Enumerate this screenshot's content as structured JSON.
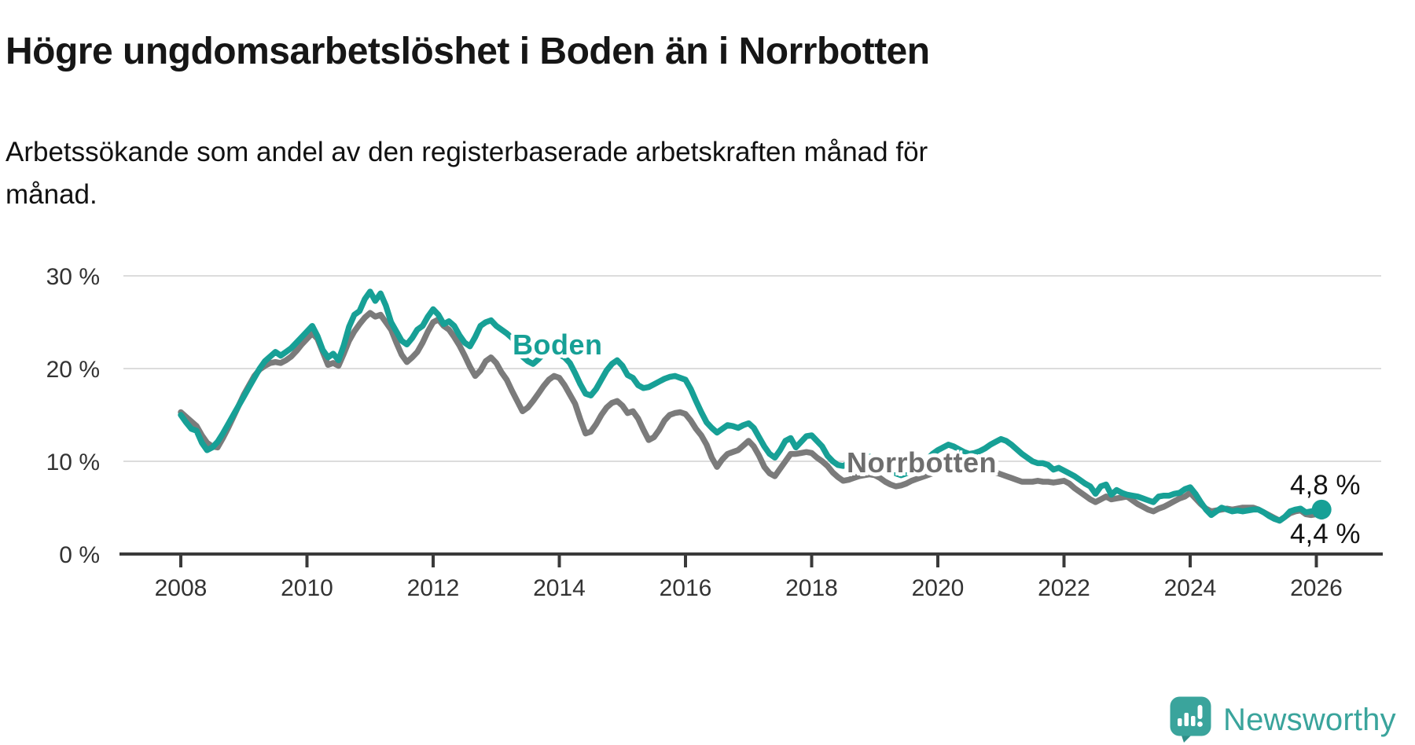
{
  "title": "Högre ungdomsarbetslöshet i Boden än i Norrbotten",
  "subtitle": {
    "line1": "Arbetssökande som andel av den registerbaserade arbetskraften månad för",
    "line2": "månad."
  },
  "annotations": {
    "boden_label": "Boden",
    "norrbotten_label": "Norrbotten",
    "boden_end_value": "4,8 %",
    "norrbotten_end_value": "4,4 %"
  },
  "footer": {
    "brand": "Newsworthy"
  },
  "colors": {
    "boden_line": "#17a096",
    "norrbotten_line": "#7b7b7b",
    "norrbotten_label_text": "#6e6e6e",
    "gridline": "#dcdcdc",
    "axis": "#3a3a3a",
    "tick_text": "#333333",
    "logo_teal": "#3aa49c",
    "logo_tail_teal": "#2f8f88"
  },
  "chart_data": {
    "type": "line",
    "unit": "%",
    "frequency": "monthly",
    "x_start_year": 2008,
    "x_start_month": 1,
    "x_end_year": 2026,
    "x_end_month": 2,
    "x_ticks": [
      2008,
      2010,
      2012,
      2014,
      2016,
      2018,
      2020,
      2022,
      2024,
      2026
    ],
    "x_tick_labels": [
      "2008",
      "2010",
      "2012",
      "2014",
      "2016",
      "2018",
      "2020",
      "2022",
      "2024",
      "2026"
    ],
    "y_ticks": [
      0,
      10,
      20,
      30
    ],
    "y_tick_labels": [
      "0 %",
      "10 %",
      "20 %",
      "30 %"
    ],
    "y_gridlines": [
      10,
      20,
      30
    ],
    "ylim": [
      0,
      30
    ],
    "legend_position": "inline-labels",
    "grid": "horizontal-only",
    "series": [
      {
        "name": "Norrbotten",
        "color": "#7b7b7b",
        "end_value_label": "4,4 %",
        "values": [
          15.3,
          14.8,
          14.3,
          13.8,
          12.8,
          12,
          11.6,
          11.5,
          12.5,
          13.6,
          14.8,
          16,
          17.2,
          18.2,
          19.2,
          19.9,
          20.3,
          20.6,
          20.7,
          20.6,
          20.9,
          21.3,
          21.9,
          22.6,
          23.2,
          23.8,
          23.2,
          21.8,
          20.4,
          20.6,
          20.3,
          21.6,
          23,
          24,
          24.8,
          25.5,
          26,
          25.6,
          25.8,
          25,
          24.2,
          22.8,
          21.5,
          20.7,
          21.2,
          21.8,
          22.8,
          24,
          25,
          25.3,
          24.6,
          24.2,
          23.4,
          22.5,
          21.4,
          20.2,
          19.2,
          19.8,
          20.8,
          21.2,
          20.6,
          19.6,
          18.8,
          17.6,
          16.5,
          15.4,
          15.8,
          16.5,
          17.3,
          18.1,
          18.8,
          19.2,
          19,
          18.2,
          17.2,
          16.2,
          14.5,
          13,
          13.2,
          14,
          15,
          15.8,
          16.3,
          16.5,
          16,
          15.2,
          15.4,
          14.6,
          13.4,
          12.3,
          12.6,
          13.4,
          14.4,
          15,
          15.2,
          15.3,
          15.1,
          14.4,
          13.5,
          12.8,
          11.8,
          10.4,
          9.4,
          10.2,
          10.8,
          11,
          11.2,
          11.7,
          12.2,
          11.6,
          10.6,
          9.4,
          8.7,
          8.4,
          9.2,
          10,
          10.8,
          10.8,
          10.9,
          11,
          10.9,
          10.4,
          10,
          9.5,
          8.8,
          8.3,
          7.9,
          8,
          8.2,
          8.4,
          8.5,
          8.6,
          8.5,
          8.2,
          7.8,
          7.5,
          7.3,
          7.4,
          7.6,
          7.9,
          8.1,
          8.3,
          8.5,
          8.7,
          8.9,
          9.2,
          9.6,
          9.8,
          9.7,
          9.5,
          9.3,
          9.2,
          9.1,
          9,
          9,
          8.8,
          8.6,
          8.4,
          8.2,
          8,
          7.8,
          7.8,
          7.8,
          7.9,
          7.8,
          7.8,
          7.7,
          7.8,
          7.9,
          7.6,
          7.1,
          6.7,
          6.3,
          5.9,
          5.6,
          5.9,
          6.2,
          5.9,
          6,
          6.1,
          6.2,
          5.8,
          5.4,
          5.1,
          4.8,
          4.6,
          4.9,
          5.1,
          5.4,
          5.7,
          6,
          6.2,
          6.6,
          6,
          5.4,
          4.9,
          4.6,
          4.7,
          4.8,
          4.9,
          4.8,
          4.9,
          5,
          5,
          5,
          4.8,
          4.5,
          4.2,
          3.9,
          3.6,
          4,
          4.4,
          4.6,
          4.7,
          4.3,
          4.2,
          4.3,
          4.4
        ]
      },
      {
        "name": "Boden",
        "color": "#17a096",
        "end_value_label": "4,8 %",
        "values": [
          15,
          14.2,
          13.5,
          13.3,
          12,
          11.2,
          11.5,
          12.1,
          13,
          14,
          15,
          16,
          17,
          18,
          19,
          20,
          20.8,
          21.3,
          21.8,
          21.4,
          21.8,
          22.2,
          22.8,
          23.4,
          24,
          24.6,
          23.5,
          22,
          21.2,
          21.6,
          20.9,
          22.5,
          24.5,
          25.8,
          26.2,
          27.5,
          28.3,
          27.3,
          28.1,
          26.8,
          25,
          24,
          23,
          22.6,
          23.3,
          24.2,
          24.6,
          25.6,
          26.4,
          25.8,
          24.8,
          25.1,
          24.6,
          23.6,
          22.8,
          22.4,
          23.4,
          24.6,
          25,
          25.2,
          24.6,
          24.2,
          23.8,
          23.3,
          22.5,
          21.3,
          20.8,
          20.5,
          21,
          21.6,
          22,
          21.8,
          21.5,
          21.2,
          20.6,
          19.5,
          18.3,
          17.3,
          17.1,
          17.8,
          18.8,
          19.8,
          20.5,
          20.9,
          20.3,
          19.3,
          19,
          18.2,
          17.9,
          18,
          18.3,
          18.6,
          18.9,
          19.1,
          19.2,
          19,
          18.8,
          17.8,
          16.5,
          15.3,
          14.2,
          13.6,
          13.1,
          13.5,
          13.9,
          13.8,
          13.6,
          13.9,
          14.1,
          13.6,
          12.6,
          11.6,
          10.8,
          10.4,
          11.2,
          12.2,
          12.5,
          11.5,
          12.1,
          12.7,
          12.8,
          12.2,
          11.6,
          10.6,
          10,
          9.6,
          9.5,
          9.8,
          10,
          10.2,
          10.4,
          10.5,
          10.3,
          9.9,
          9.4,
          9,
          8.7,
          8.5,
          8.7,
          9,
          9.4,
          9.8,
          10.2,
          10.8,
          11.2,
          11.5,
          11.8,
          11.6,
          11.3,
          11,
          10.8,
          10.9,
          11.1,
          11.4,
          11.8,
          12.1,
          12.4,
          12.2,
          11.8,
          11.3,
          10.8,
          10.4,
          10,
          9.8,
          9.8,
          9.6,
          9.1,
          9.3,
          9,
          8.7,
          8.4,
          8,
          7.6,
          7.3,
          6.5,
          7.3,
          7.5,
          6.4,
          6.9,
          6.6,
          6.4,
          6.3,
          6.2,
          6,
          5.8,
          5.6,
          6.2,
          6.3,
          6.3,
          6.5,
          6.6,
          7,
          7.2,
          6.5,
          5.6,
          4.8,
          4.2,
          4.6,
          5,
          4.8,
          4.6,
          4.7,
          4.6,
          4.7,
          4.8,
          4.8,
          4.5,
          4.1,
          3.8,
          3.6,
          4,
          4.6,
          4.8,
          4.9,
          4.5,
          4.6,
          4.7,
          4.8
        ]
      }
    ]
  }
}
